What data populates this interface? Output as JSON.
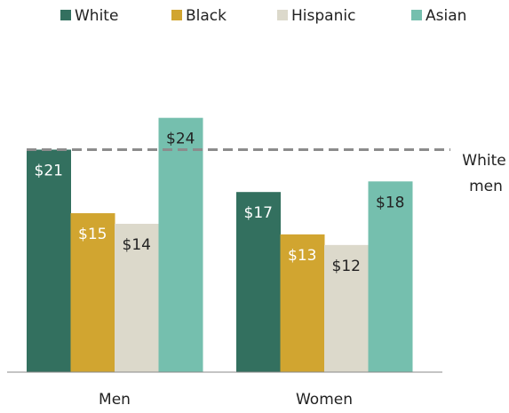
{
  "chart_data": {
    "type": "bar",
    "categories": [
      "Men",
      "Women"
    ],
    "series": [
      {
        "name": "White",
        "color": "#33705f",
        "values": [
          21,
          17
        ],
        "labels": [
          "$21",
          "$17"
        ],
        "label_color": "#ffffff"
      },
      {
        "name": "Black",
        "color": "#d1a530",
        "values": [
          15,
          13
        ],
        "labels": [
          "$15",
          "$13"
        ],
        "label_color": "#ffffff"
      },
      {
        "name": "Hispanic",
        "color": "#dcd9cb",
        "values": [
          14,
          12
        ],
        "labels": [
          "$14",
          "$12"
        ],
        "label_color": "#222222"
      },
      {
        "name": "Asian",
        "color": "#75bfae",
        "values": [
          24,
          18
        ],
        "labels": [
          "$24",
          "$18"
        ],
        "label_color": "#222222"
      }
    ],
    "reference_line": {
      "value": 21,
      "label_line1": "White",
      "label_line2": "men",
      "style": "dashed",
      "color": "#8c8c8c"
    },
    "ylim": [
      0,
      28.5
    ],
    "legend_position": "top",
    "grid": false,
    "title": "",
    "xlabel": "",
    "ylabel": ""
  }
}
